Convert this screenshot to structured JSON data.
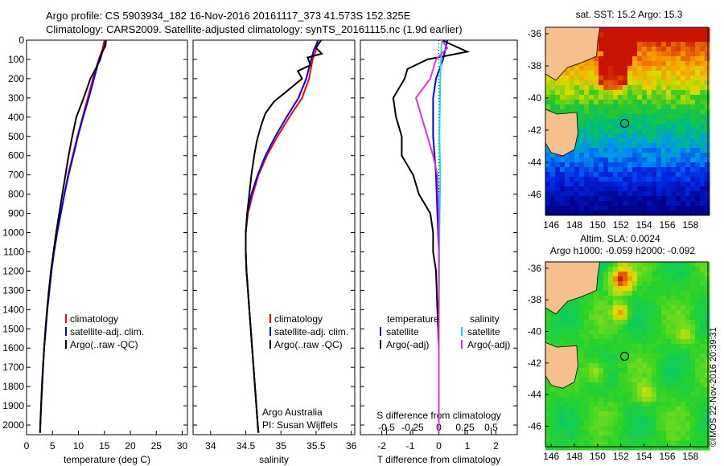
{
  "header": {
    "title_line1": "Argo profile: CS 5903934_182 16-Nov-2016 20161117_373 41.573S 152.325E",
    "title_line2": "Climatology: CARS2009. Satellite-adjusted climatology: synTS_20161115.nc (1.9d earlier)"
  },
  "colors": {
    "climatology": "#ff0000",
    "satellite": "#0000ff",
    "argo": "#000000",
    "sal_satellite": "#00e5ee",
    "sal_argo": "#e030e0",
    "land": "#f6c08e"
  },
  "chart_data": [
    {
      "type": "line",
      "panel": "temperature",
      "xlabel": "temperature (deg C)",
      "ylabel": "",
      "xlim": [
        0,
        31
      ],
      "ylim": [
        2050,
        0
      ],
      "x_ticks": [
        "0",
        "5",
        "10",
        "15",
        "20",
        "25",
        "30"
      ],
      "y_ticks": [
        "0",
        "100",
        "200",
        "300",
        "400",
        "500",
        "600",
        "700",
        "800",
        "900",
        "1000",
        "1100",
        "1200",
        "1300",
        "1400",
        "1500",
        "1600",
        "1700",
        "1800",
        "1900",
        "2000"
      ],
      "legend": [
        "climatology",
        "satellite-adj. clim.",
        "Argo(..raw -QC)"
      ],
      "series": [
        {
          "name": "climatology",
          "color": "#ff0000",
          "points": [
            [
              15.0,
              0
            ],
            [
              14.6,
              50
            ],
            [
              13.9,
              100
            ],
            [
              12.8,
              200
            ],
            [
              11.8,
              300
            ],
            [
              10.8,
              400
            ],
            [
              9.8,
              500
            ],
            [
              8.9,
              600
            ],
            [
              8.0,
              700
            ],
            [
              7.3,
              800
            ],
            [
              6.6,
              900
            ],
            [
              5.9,
              1000
            ],
            [
              5.3,
              1100
            ],
            [
              4.8,
              1200
            ],
            [
              4.4,
              1300
            ],
            [
              4.0,
              1400
            ],
            [
              3.7,
              1500
            ],
            [
              3.4,
              1600
            ],
            [
              3.2,
              1700
            ],
            [
              3.0,
              1800
            ],
            [
              2.8,
              1900
            ],
            [
              2.65,
              2000
            ],
            [
              2.6,
              2040
            ]
          ]
        },
        {
          "name": "satellite-adj. clim.",
          "color": "#0000ff",
          "points": [
            [
              15.3,
              0
            ],
            [
              14.8,
              50
            ],
            [
              14.0,
              100
            ],
            [
              13.0,
              200
            ],
            [
              12.0,
              300
            ],
            [
              10.9,
              400
            ],
            [
              9.9,
              500
            ],
            [
              9.0,
              600
            ],
            [
              8.1,
              700
            ],
            [
              7.3,
              800
            ],
            [
              6.6,
              900
            ],
            [
              5.9,
              1000
            ],
            [
              5.3,
              1100
            ],
            [
              4.8,
              1200
            ],
            [
              4.4,
              1300
            ],
            [
              4.0,
              1400
            ],
            [
              3.7,
              1500
            ],
            [
              3.4,
              1600
            ],
            [
              3.2,
              1700
            ],
            [
              3.0,
              1800
            ],
            [
              2.8,
              1900
            ],
            [
              2.65,
              2000
            ],
            [
              2.6,
              2040
            ]
          ]
        },
        {
          "name": "Argo(..raw -QC)",
          "color": "#000000",
          "points": [
            [
              15.3,
              0
            ],
            [
              15.2,
              30
            ],
            [
              14.6,
              60
            ],
            [
              14.2,
              100
            ],
            [
              13.3,
              150
            ],
            [
              12.3,
              200
            ],
            [
              11.0,
              300
            ],
            [
              9.6,
              400
            ],
            [
              8.8,
              500
            ],
            [
              8.1,
              600
            ],
            [
              7.5,
              700
            ],
            [
              6.9,
              800
            ],
            [
              6.3,
              900
            ],
            [
              5.7,
              1000
            ],
            [
              5.2,
              1100
            ],
            [
              4.7,
              1200
            ],
            [
              4.3,
              1300
            ],
            [
              3.95,
              1400
            ],
            [
              3.65,
              1500
            ],
            [
              3.4,
              1600
            ],
            [
              3.15,
              1700
            ],
            [
              2.95,
              1800
            ],
            [
              2.8,
              1900
            ],
            [
              2.65,
              2000
            ],
            [
              2.6,
              2040
            ]
          ]
        }
      ]
    },
    {
      "type": "line",
      "panel": "salinity",
      "xlabel": "salinity",
      "xlim": [
        33.75,
        36.05
      ],
      "ylim": [
        2050,
        0
      ],
      "x_ticks": [
        "34",
        "34.5",
        "35",
        "35.5",
        "36"
      ],
      "legend": [
        "climatology",
        "satellite-adj. clim.",
        "Argo(..raw -QC)"
      ],
      "annotation": [
        "Argo Australia",
        "PI: Susan Wijffels"
      ],
      "series": [
        {
          "name": "climatology",
          "color": "#ff0000",
          "points": [
            [
              35.52,
              0
            ],
            [
              35.5,
              50
            ],
            [
              35.45,
              100
            ],
            [
              35.4,
              200
            ],
            [
              35.3,
              300
            ],
            [
              35.12,
              400
            ],
            [
              34.95,
              500
            ],
            [
              34.8,
              600
            ],
            [
              34.68,
              700
            ],
            [
              34.6,
              800
            ],
            [
              34.53,
              900
            ],
            [
              34.5,
              1000
            ],
            [
              34.5,
              1100
            ],
            [
              34.51,
              1200
            ],
            [
              34.53,
              1300
            ],
            [
              34.55,
              1400
            ],
            [
              34.57,
              1500
            ],
            [
              34.59,
              1600
            ],
            [
              34.61,
              1700
            ],
            [
              34.63,
              1800
            ],
            [
              34.65,
              1900
            ],
            [
              34.67,
              2000
            ],
            [
              34.68,
              2040
            ]
          ]
        },
        {
          "name": "satellite-adj. clim.",
          "color": "#0000ff",
          "points": [
            [
              35.53,
              0
            ],
            [
              35.47,
              50
            ],
            [
              35.43,
              100
            ],
            [
              35.36,
              200
            ],
            [
              35.25,
              300
            ],
            [
              35.08,
              400
            ],
            [
              34.92,
              500
            ],
            [
              34.78,
              600
            ],
            [
              34.67,
              700
            ],
            [
              34.58,
              800
            ],
            [
              34.52,
              900
            ],
            [
              34.5,
              1000
            ],
            [
              34.5,
              1100
            ],
            [
              34.51,
              1200
            ],
            [
              34.53,
              1300
            ],
            [
              34.55,
              1400
            ],
            [
              34.57,
              1500
            ],
            [
              34.59,
              1600
            ],
            [
              34.61,
              1700
            ],
            [
              34.63,
              1800
            ],
            [
              34.65,
              1900
            ],
            [
              34.67,
              2000
            ],
            [
              34.68,
              2040
            ]
          ]
        },
        {
          "name": "Argo(..raw -QC)",
          "color": "#000000",
          "points": [
            [
              35.57,
              0
            ],
            [
              35.5,
              40
            ],
            [
              35.58,
              70
            ],
            [
              35.38,
              90
            ],
            [
              35.42,
              130
            ],
            [
              35.24,
              160
            ],
            [
              35.3,
              200
            ],
            [
              35.1,
              260
            ],
            [
              34.9,
              320
            ],
            [
              34.78,
              380
            ],
            [
              34.72,
              440
            ],
            [
              34.66,
              520
            ],
            [
              34.62,
              600
            ],
            [
              34.58,
              700
            ],
            [
              34.55,
              800
            ],
            [
              34.52,
              900
            ],
            [
              34.5,
              1000
            ],
            [
              34.5,
              1100
            ],
            [
              34.51,
              1200
            ],
            [
              34.53,
              1300
            ],
            [
              34.55,
              1400
            ],
            [
              34.57,
              1500
            ],
            [
              34.59,
              1600
            ],
            [
              34.61,
              1700
            ],
            [
              34.63,
              1800
            ],
            [
              34.65,
              1900
            ],
            [
              34.67,
              2000
            ],
            [
              34.68,
              2040
            ]
          ]
        }
      ]
    },
    {
      "type": "line",
      "panel": "difference",
      "xlabel": "T difference from climatology",
      "top_axis_label": "S difference from climatology",
      "xlim": [
        -2.75,
        2.75
      ],
      "ylim": [
        2050,
        0
      ],
      "x_ticks": [
        "-2",
        "-1",
        "0",
        "1",
        "2"
      ],
      "top_ticks": [
        "-0.5",
        "-0.25",
        "0",
        "0.25",
        "0.5"
      ],
      "legend_temperature": [
        "temperature",
        "satellite",
        "Argo(-adj)"
      ],
      "legend_salinity": [
        "salinity",
        "satellite",
        "Argo(-adj)"
      ],
      "series": [
        {
          "name": "temperature satellite",
          "color": "#0000ff",
          "points": [
            [
              0.3,
              0
            ],
            [
              0.15,
              100
            ],
            [
              -0.1,
              200
            ],
            [
              -0.2,
              300
            ],
            [
              -0.2,
              500
            ],
            [
              -0.1,
              700
            ],
            [
              -0.05,
              900
            ],
            [
              0,
              1100
            ],
            [
              0,
              1500
            ],
            [
              0,
              2040
            ]
          ]
        },
        {
          "name": "temperature Argo(-adj)",
          "color": "#000000",
          "points": [
            [
              0.1,
              0
            ],
            [
              1.0,
              60
            ],
            [
              -0.4,
              100
            ],
            [
              -1.1,
              150
            ],
            [
              -1.2,
              200
            ],
            [
              -1.6,
              300
            ],
            [
              -1.5,
              400
            ],
            [
              -1.3,
              500
            ],
            [
              -1.3,
              600
            ],
            [
              -0.9,
              700
            ],
            [
              -0.7,
              800
            ],
            [
              -0.3,
              900
            ],
            [
              -0.2,
              1000
            ],
            [
              -0.2,
              1100
            ],
            [
              -0.1,
              1200
            ],
            [
              -0.05,
              1400
            ],
            [
              0,
              1600
            ],
            [
              0,
              2040
            ]
          ]
        },
        {
          "name": "salinity satellite",
          "color": "#00e5ee",
          "points": [
            [
              0.1,
              0
            ],
            [
              0.05,
              200
            ],
            [
              0.02,
              500
            ],
            [
              0.05,
              700
            ],
            [
              0.02,
              1000
            ],
            [
              0,
              1500
            ],
            [
              0,
              2040
            ]
          ]
        },
        {
          "name": "salinity Argo(-adj)",
          "color": "#e030e0",
          "points": [
            [
              0.1,
              0
            ],
            [
              0.3,
              40
            ],
            [
              -0.1,
              100
            ],
            [
              -0.3,
              200
            ],
            [
              -0.8,
              300
            ],
            [
              -0.6,
              400
            ],
            [
              -0.4,
              500
            ],
            [
              -0.2,
              600
            ],
            [
              -0.05,
              700
            ],
            [
              0,
              900
            ],
            [
              0,
              2040
            ]
          ]
        }
      ]
    },
    {
      "type": "heatmap",
      "panel": "sst_map",
      "title": "sat. SST: 15.2 Argo: 15.3",
      "x_ticks": [
        "146",
        "148",
        "150",
        "152",
        "154",
        "156",
        "158"
      ],
      "y_ticks": [
        "-36",
        "-38",
        "-40",
        "-42",
        "-44",
        "-46"
      ],
      "xlim": [
        145.5,
        159.5
      ],
      "ylim": [
        -47.3,
        -35.6
      ],
      "float_position": [
        152.325,
        -41.573
      ]
    },
    {
      "type": "heatmap",
      "panel": "sla_map",
      "title_line1": "Altim. SLA: 0.0024",
      "title_line2": "Argo h1000: -0.059 h2000: -0.092",
      "x_ticks": [
        "146",
        "148",
        "150",
        "152",
        "154",
        "156",
        "158"
      ],
      "y_ticks": [
        "-36",
        "-38",
        "-40",
        "-42",
        "-44",
        "-46"
      ],
      "xlim": [
        145.5,
        159.5
      ],
      "ylim": [
        -47.3,
        -35.6
      ],
      "float_position": [
        152.325,
        -41.573
      ]
    }
  ],
  "footer": {
    "stamp": "©IMOS 22-Nov-2016 20:39:31"
  }
}
